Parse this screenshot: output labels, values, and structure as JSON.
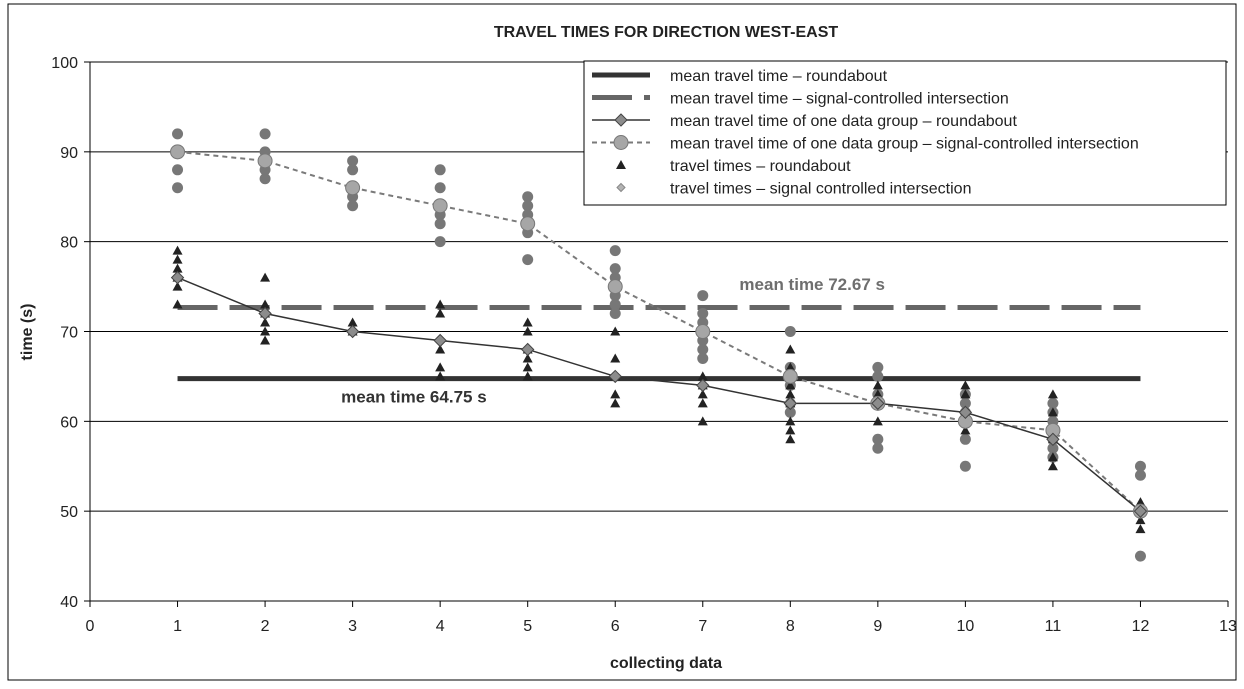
{
  "chart_data": {
    "type": "scatter",
    "title": "TRAVEL TIMES FOR DIRECTION WEST-EAST",
    "xlabel": "collecting data",
    "ylabel": "time (s)",
    "xlim": [
      0,
      13
    ],
    "ylim": [
      40,
      100
    ],
    "xticks": [
      0,
      1,
      2,
      3,
      4,
      5,
      6,
      7,
      8,
      9,
      10,
      11,
      12,
      13
    ],
    "yticks": [
      40,
      50,
      60,
      70,
      80,
      90,
      100
    ],
    "grid": "horizontal",
    "legend_position": "top-right",
    "annotations": [
      {
        "text": "mean time 72.67 s",
        "x": 8.25,
        "y": 74.6
      },
      {
        "text": "mean time 64.75 s",
        "x": 3.7,
        "y": 62.1
      }
    ],
    "colors": {
      "roundabout": "#333333",
      "signal": "#666666",
      "group_marker": "#a6a6a6",
      "small_diamond": "#b3b3b3"
    },
    "series": [
      {
        "name": "mean travel time – roundabout",
        "kind": "hline",
        "x_range": [
          1,
          12
        ],
        "value": 64.75
      },
      {
        "name": "mean travel time – signal-controlled intersection",
        "kind": "hline_dashed",
        "x_range": [
          1,
          12
        ],
        "value": 72.67
      },
      {
        "name": "mean travel time of one data group – roundabout",
        "kind": "line_diamond",
        "x": [
          1,
          2,
          3,
          4,
          5,
          6,
          7,
          8,
          9,
          10,
          11,
          12
        ],
        "y": [
          76,
          72,
          70,
          69,
          68,
          65,
          64,
          62,
          62,
          61,
          58,
          50
        ]
      },
      {
        "name": "mean travel time of one data group – signal-controlled intersection",
        "kind": "line_circle_dashed",
        "x": [
          1,
          2,
          3,
          4,
          5,
          6,
          7,
          8,
          9,
          10,
          11,
          12
        ],
        "y": [
          90,
          89,
          86,
          84,
          82,
          75,
          70,
          65,
          62,
          60,
          59,
          50
        ]
      },
      {
        "name": "travel times – roundabout",
        "kind": "triangles",
        "points": [
          [
            1,
            79
          ],
          [
            1,
            78
          ],
          [
            1,
            77
          ],
          [
            1,
            76
          ],
          [
            1,
            75
          ],
          [
            1,
            73
          ],
          [
            2,
            76
          ],
          [
            2,
            73
          ],
          [
            2,
            72
          ],
          [
            2,
            71
          ],
          [
            2,
            70
          ],
          [
            2,
            69
          ],
          [
            3,
            71
          ],
          [
            3,
            70
          ],
          [
            4,
            73
          ],
          [
            4,
            72
          ],
          [
            4,
            68
          ],
          [
            4,
            66
          ],
          [
            4,
            65
          ],
          [
            5,
            71
          ],
          [
            5,
            70
          ],
          [
            5,
            68
          ],
          [
            5,
            67
          ],
          [
            5,
            66
          ],
          [
            5,
            65
          ],
          [
            6,
            70
          ],
          [
            6,
            67
          ],
          [
            6,
            65
          ],
          [
            6,
            63
          ],
          [
            6,
            62
          ],
          [
            7,
            65
          ],
          [
            7,
            64
          ],
          [
            7,
            63
          ],
          [
            7,
            62
          ],
          [
            7,
            60
          ],
          [
            8,
            68
          ],
          [
            8,
            66
          ],
          [
            8,
            64
          ],
          [
            8,
            63
          ],
          [
            8,
            62
          ],
          [
            8,
            60
          ],
          [
            8,
            59
          ],
          [
            8,
            58
          ],
          [
            9,
            64
          ],
          [
            9,
            63
          ],
          [
            9,
            62
          ],
          [
            9,
            60
          ],
          [
            10,
            64
          ],
          [
            10,
            63
          ],
          [
            10,
            61
          ],
          [
            10,
            60
          ],
          [
            10,
            59
          ],
          [
            11,
            63
          ],
          [
            11,
            61
          ],
          [
            11,
            58
          ],
          [
            11,
            56
          ],
          [
            11,
            55
          ],
          [
            12,
            51
          ],
          [
            12,
            50
          ],
          [
            12,
            49
          ],
          [
            12,
            48
          ]
        ]
      },
      {
        "name": "travel times – signal controlled intersection",
        "kind": "circles_diamonds",
        "points": [
          [
            1,
            92
          ],
          [
            1,
            90
          ],
          [
            1,
            88
          ],
          [
            1,
            86
          ],
          [
            2,
            92
          ],
          [
            2,
            90
          ],
          [
            2,
            88
          ],
          [
            2,
            87
          ],
          [
            3,
            89
          ],
          [
            3,
            88
          ],
          [
            3,
            86
          ],
          [
            3,
            85
          ],
          [
            3,
            84
          ],
          [
            4,
            88
          ],
          [
            4,
            86
          ],
          [
            4,
            84
          ],
          [
            4,
            83
          ],
          [
            4,
            82
          ],
          [
            4,
            80
          ],
          [
            5,
            85
          ],
          [
            5,
            84
          ],
          [
            5,
            83
          ],
          [
            5,
            82
          ],
          [
            5,
            81
          ],
          [
            5,
            78
          ],
          [
            6,
            79
          ],
          [
            6,
            77
          ],
          [
            6,
            76
          ],
          [
            6,
            75
          ],
          [
            6,
            74
          ],
          [
            6,
            73
          ],
          [
            6,
            72
          ],
          [
            7,
            74
          ],
          [
            7,
            72
          ],
          [
            7,
            71
          ],
          [
            7,
            70
          ],
          [
            7,
            69
          ],
          [
            7,
            68
          ],
          [
            7,
            67
          ],
          [
            8,
            70
          ],
          [
            8,
            66
          ],
          [
            8,
            65
          ],
          [
            8,
            64
          ],
          [
            8,
            62
          ],
          [
            8,
            61
          ],
          [
            9,
            66
          ],
          [
            9,
            65
          ],
          [
            9,
            63
          ],
          [
            9,
            62
          ],
          [
            9,
            58
          ],
          [
            9,
            57
          ],
          [
            10,
            63
          ],
          [
            10,
            62
          ],
          [
            10,
            61
          ],
          [
            10,
            60
          ],
          [
            10,
            58
          ],
          [
            10,
            55
          ],
          [
            11,
            62
          ],
          [
            11,
            61
          ],
          [
            11,
            60
          ],
          [
            11,
            59
          ],
          [
            11,
            58
          ],
          [
            11,
            57
          ],
          [
            11,
            56
          ],
          [
            12,
            55
          ],
          [
            12,
            54
          ],
          [
            12,
            50
          ],
          [
            12,
            45
          ]
        ]
      }
    ]
  }
}
